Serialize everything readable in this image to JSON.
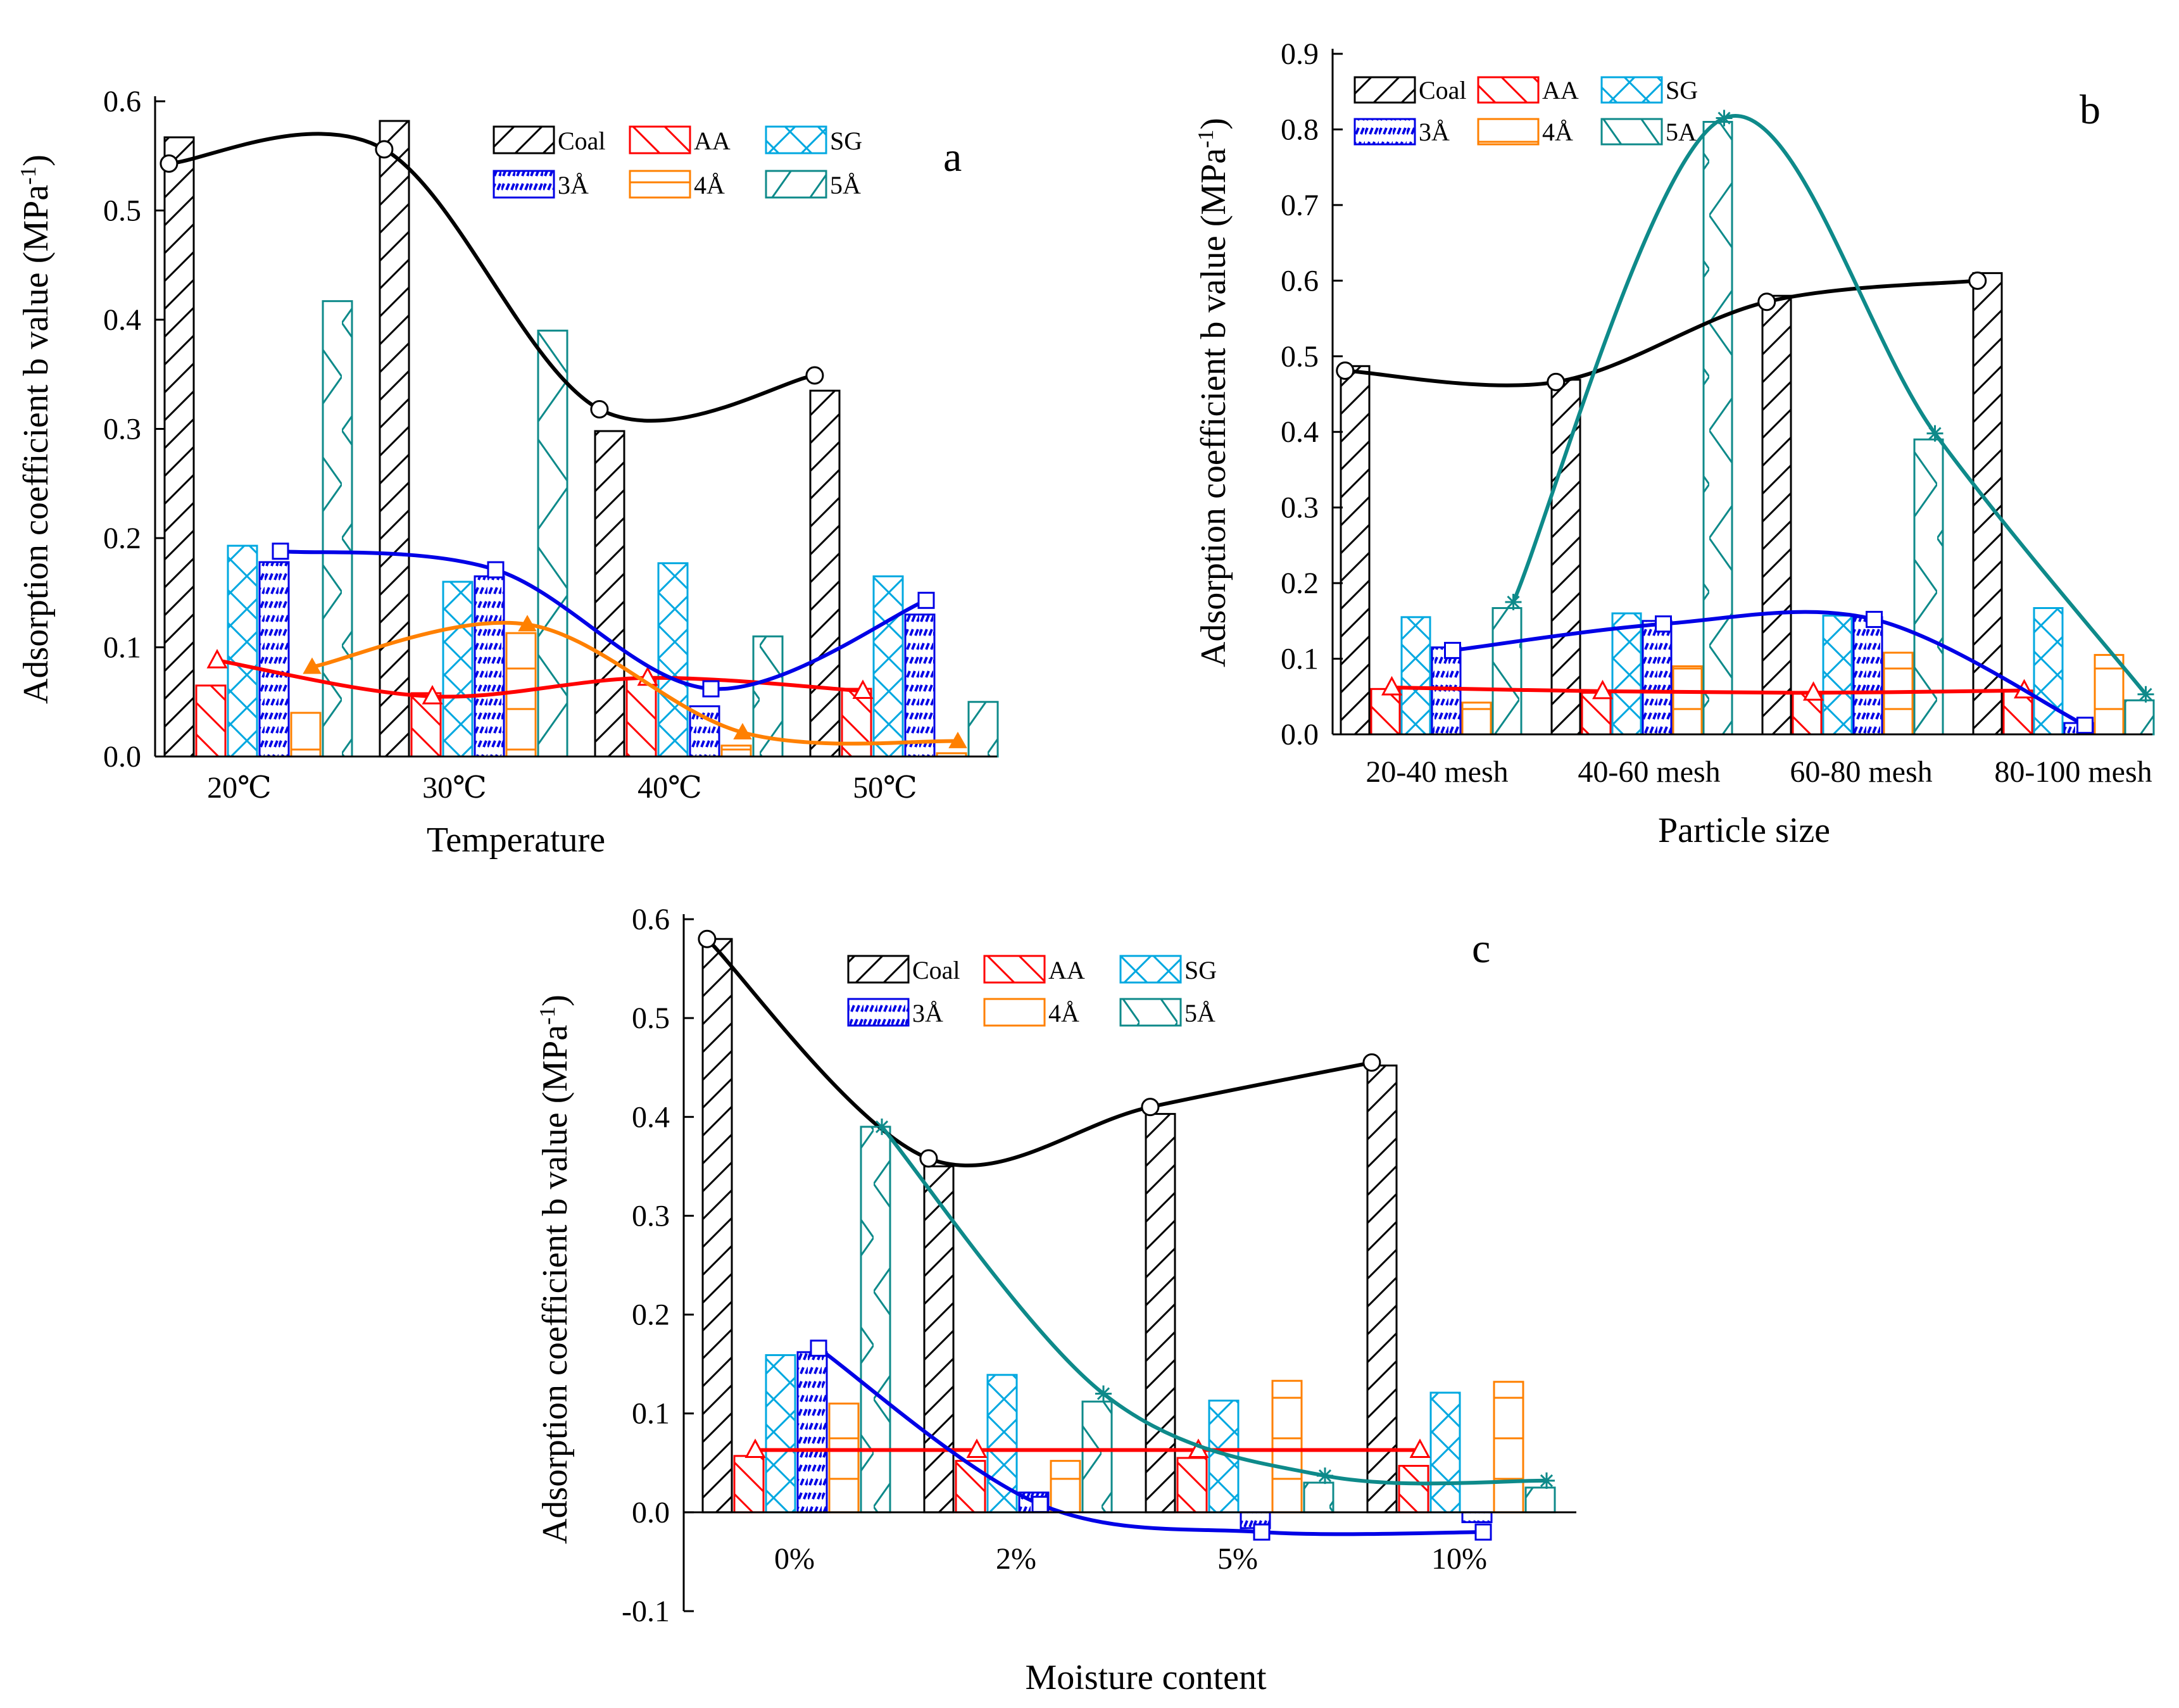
{
  "figure": {
    "colors": {
      "Coal": "#000000",
      "AA": "#ff0000",
      "SG": "#00a8e0",
      "3A": "#0000e6",
      "4A": "#ff8000",
      "5A": "#0e8a8a"
    },
    "legend": {
      "row1": [
        "Coal",
        "AA",
        "SG"
      ],
      "row2": [
        "3Å",
        "4Å",
        "5Å"
      ],
      "row2_panel_b": [
        "3Å",
        "4Å",
        "5A"
      ]
    }
  },
  "chart_data": [
    {
      "id": "a",
      "type": "bar",
      "panel_label": "a",
      "xlabel": "Temperature",
      "ylabel": "Adsorption coefficient b value (MPa",
      "ylabel_sup": "-1",
      "ylabel_close": ")",
      "ylim": [
        0,
        0.6
      ],
      "yticks": [
        "0.0",
        "0.1",
        "0.2",
        "0.3",
        "0.4",
        "0.5",
        "0.6"
      ],
      "categories": [
        "20℃",
        "30℃",
        "40℃",
        "50℃"
      ],
      "series": [
        {
          "name": "Coal",
          "key": "Coal",
          "values": [
            0.567,
            0.582,
            0.298,
            0.335
          ]
        },
        {
          "name": "AA",
          "key": "AA",
          "values": [
            0.065,
            0.058,
            0.072,
            0.062
          ]
        },
        {
          "name": "SG",
          "key": "SG",
          "values": [
            0.193,
            0.16,
            0.177,
            0.165
          ]
        },
        {
          "name": "3Å",
          "key": "3A",
          "values": [
            0.178,
            0.165,
            0.046,
            0.13
          ]
        },
        {
          "name": "4Å",
          "key": "4A",
          "values": [
            0.04,
            0.113,
            0.01,
            0.003
          ]
        },
        {
          "name": "5Å",
          "key": "5A",
          "values": [
            0.417,
            0.39,
            0.11,
            0.05
          ]
        }
      ],
      "points": {
        "Coal": [
          0.543,
          0.556,
          0.318,
          0.349
        ],
        "AA": [
          0.088,
          0.055,
          0.072,
          0.06
        ],
        "3A": [
          0.188,
          0.171,
          0.062,
          0.143
        ],
        "4A": [
          0.082,
          0.121,
          0.022,
          0.014
        ]
      }
    },
    {
      "id": "b",
      "type": "bar",
      "panel_label": "b",
      "xlabel": "Particle size",
      "ylabel": "Adsorption coefficient b value (MPa",
      "ylabel_sup": "-1",
      "ylabel_close": ")",
      "ylim": [
        0,
        0.9
      ],
      "yticks": [
        "0.0",
        "0.1",
        "0.2",
        "0.3",
        "0.4",
        "0.5",
        "0.6",
        "0.7",
        "0.8",
        "0.9"
      ],
      "categories": [
        "20-40 mesh",
        "40-60 mesh",
        "60-80 mesh",
        "80-100 mesh"
      ],
      "series": [
        {
          "name": "Coal",
          "key": "Coal",
          "values": [
            0.487,
            0.469,
            0.58,
            0.61
          ]
        },
        {
          "name": "AA",
          "key": "AA",
          "values": [
            0.06,
            0.055,
            0.055,
            0.058
          ]
        },
        {
          "name": "SG",
          "key": "SG",
          "values": [
            0.155,
            0.16,
            0.157,
            0.167
          ]
        },
        {
          "name": "3Å",
          "key": "3A",
          "values": [
            0.115,
            0.15,
            0.155,
            0.015
          ]
        },
        {
          "name": "4Å",
          "key": "4A",
          "values": [
            0.042,
            0.09,
            0.108,
            0.105
          ]
        },
        {
          "name": "5A",
          "key": "5A",
          "values": [
            0.167,
            0.81,
            0.39,
            0.045
          ]
        }
      ],
      "points": {
        "Coal": [
          0.481,
          0.466,
          0.572,
          0.6
        ],
        "AA": [
          0.062,
          0.057,
          0.055,
          0.058
        ],
        "3A": [
          0.111,
          0.146,
          0.152,
          0.012
        ],
        "5A": [
          0.175,
          0.815,
          0.398,
          0.053
        ]
      }
    },
    {
      "id": "c",
      "type": "bar",
      "panel_label": "c",
      "xlabel": "Moisture content",
      "ylabel": "Adsorption coefficient b value (MPa",
      "ylabel_sup": "-1",
      "ylabel_close": ")",
      "ylim": [
        -0.1,
        0.6
      ],
      "yticks": [
        "-0.1",
        "0.0",
        "0.1",
        "0.2",
        "0.3",
        "0.4",
        "0.5",
        "0.6"
      ],
      "categories": [
        "0%",
        "2%",
        "5%",
        "10%"
      ],
      "series": [
        {
          "name": "Coal",
          "key": "Coal",
          "values": [
            0.58,
            0.35,
            0.403,
            0.452
          ]
        },
        {
          "name": "AA",
          "key": "AA",
          "values": [
            0.057,
            0.052,
            0.055,
            0.047
          ]
        },
        {
          "name": "SG",
          "key": "SG",
          "values": [
            0.159,
            0.139,
            0.113,
            0.121
          ]
        },
        {
          "name": "3Å",
          "key": "3A",
          "values": [
            0.162,
            0.02,
            -0.016,
            -0.01
          ]
        },
        {
          "name": "4Å",
          "key": "4A",
          "values": [
            0.11,
            0.052,
            0.133,
            0.132
          ]
        },
        {
          "name": "5Å",
          "key": "5A",
          "values": [
            0.39,
            0.112,
            0.03,
            0.025
          ]
        }
      ],
      "points": {
        "Coal": [
          0.58,
          0.358,
          0.41,
          0.455
        ],
        "AA": [
          0.063,
          0.063,
          0.063,
          0.063
        ],
        "3A": [
          0.166,
          0.008,
          -0.02,
          -0.02
        ],
        "5A": [
          0.39,
          0.12,
          0.037,
          0.032
        ]
      }
    }
  ]
}
